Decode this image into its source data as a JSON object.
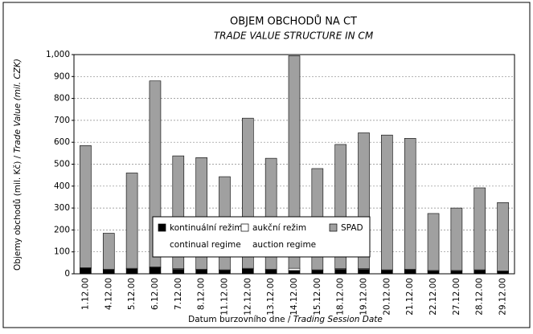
{
  "chart_data": {
    "type": "stacked_bar",
    "title": "OBJEM OBCHODŮ NA CT",
    "subtitle": "TRADE VALUE STRUCTURE IN CM",
    "y_label": "Objemy obchodů (mil. Kč) / ",
    "y_label_en": "Trade Value (mil. CZK)",
    "x_label": "Datum burzovního dne / ",
    "x_label_en": "Trading Session Date",
    "categories": [
      "1.12.00",
      "4.12.00",
      "5.12.00",
      "6.12.00",
      "7.12.00",
      "8.12.00",
      "11.12.00",
      "12.12.00",
      "13.12.00",
      "14.12.00",
      "15.12.00",
      "18.12.00",
      "19.12.00",
      "20.12.00",
      "21.12.00",
      "22.12.00",
      "27.12.00",
      "28.12.00",
      "29.12.00"
    ],
    "series": [
      {
        "name": "kontinuální režim",
        "name_en": "continual regime",
        "color": "#000000",
        "values": [
          25,
          18,
          22,
          28,
          20,
          18,
          15,
          22,
          18,
          15,
          15,
          20,
          20,
          15,
          18,
          12,
          12,
          15,
          10
        ]
      },
      {
        "name": "aukční režim",
        "name_en": "auction regime",
        "color": "#ffffff",
        "values": [
          3,
          3,
          3,
          3,
          3,
          3,
          3,
          3,
          3,
          10,
          3,
          3,
          3,
          3,
          3,
          3,
          3,
          3,
          3
        ]
      },
      {
        "name": "SPAD",
        "color": "#a0a0a0",
        "values": [
          557,
          164,
          435,
          849,
          515,
          509,
          425,
          685,
          506,
          970,
          462,
          567,
          620,
          615,
          597,
          260,
          285,
          374,
          312
        ]
      }
    ],
    "ylim": [
      0,
      1000
    ],
    "yticks": [
      0,
      100,
      200,
      300,
      400,
      500,
      600,
      700,
      800,
      900,
      {
        "value": 1000,
        "label": "1,000"
      }
    ],
    "grid": true
  }
}
